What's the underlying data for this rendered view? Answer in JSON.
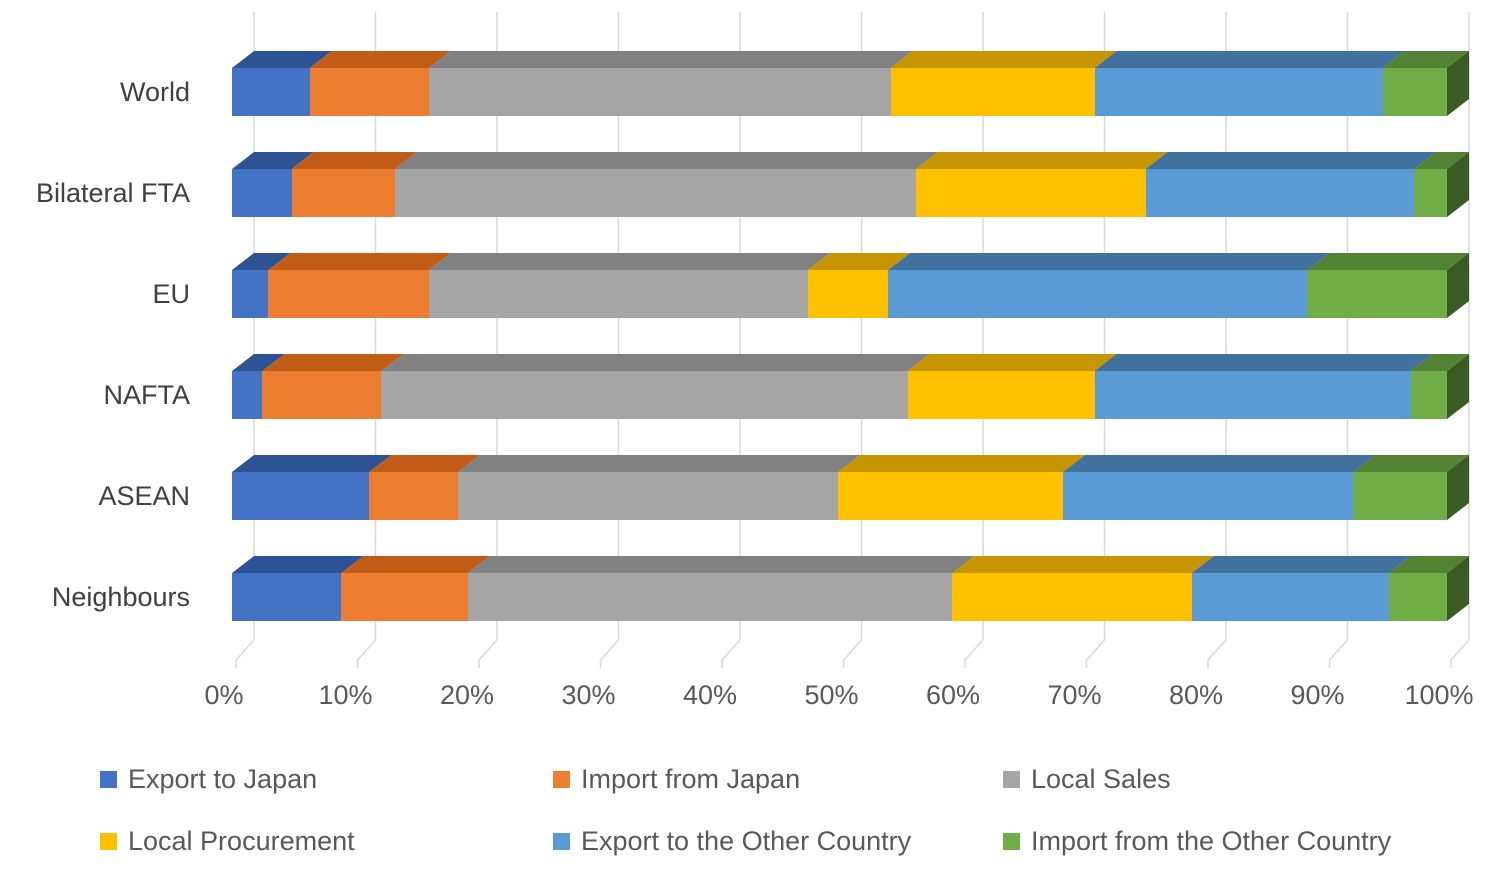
{
  "chart_data": {
    "type": "bar",
    "variant": "3d-100%-stacked-horizontal",
    "title": "",
    "xlabel": "",
    "ylabel": "",
    "unit": "%",
    "grid": true,
    "legend_position": "bottom",
    "categories": [
      "World",
      "Bilateral FTA",
      "EU",
      "NAFTA",
      "ASEAN",
      "Neighbours"
    ],
    "x_axis": {
      "min": 0,
      "max": 100,
      "tick_step": 10,
      "tick_labels": [
        "0%",
        "10%",
        "20%",
        "30%",
        "40%",
        "50%",
        "60%",
        "70%",
        "80%",
        "90%",
        "100%"
      ]
    },
    "series": [
      {
        "name": "Export to Japan",
        "color": "#4472C4",
        "top_color": "#2E5395",
        "side_color": "#203864",
        "values": [
          6.4,
          4.9,
          3.0,
          2.5,
          11.3,
          9.0
        ]
      },
      {
        "name": "Import from Japan",
        "color": "#ED7D31",
        "top_color": "#C05C15",
        "side_color": "#843C0C",
        "values": [
          9.8,
          8.5,
          13.2,
          9.8,
          7.3,
          10.4
        ]
      },
      {
        "name": "Local Sales",
        "color": "#A5A5A5",
        "top_color": "#818181",
        "side_color": "#636363",
        "values": [
          38.0,
          42.9,
          31.2,
          43.3,
          31.3,
          39.9
        ]
      },
      {
        "name": "Local Procurement",
        "color": "#FFC000",
        "top_color": "#C69500",
        "side_color": "#8F6C00",
        "values": [
          16.8,
          18.9,
          6.6,
          15.4,
          18.5,
          19.7
        ]
      },
      {
        "name": "Export to the Other Country",
        "color": "#5B9BD5",
        "top_color": "#41719C",
        "side_color": "#2E5370",
        "values": [
          23.7,
          22.1,
          34.5,
          26.0,
          23.9,
          16.2
        ]
      },
      {
        "name": "Import from the Other Country",
        "color": "#70AD47",
        "top_color": "#548235",
        "side_color": "#3A5B24",
        "values": [
          5.3,
          2.7,
          11.5,
          3.0,
          7.7,
          4.8
        ]
      }
    ],
    "gridline_color": "#D9D9D9"
  },
  "legend": {
    "rows": [
      [
        "Export to Japan",
        "Import from Japan",
        "Local Sales"
      ],
      [
        "Local Procurement",
        "Export to the Other Country",
        "Import from the Other Country"
      ]
    ]
  }
}
